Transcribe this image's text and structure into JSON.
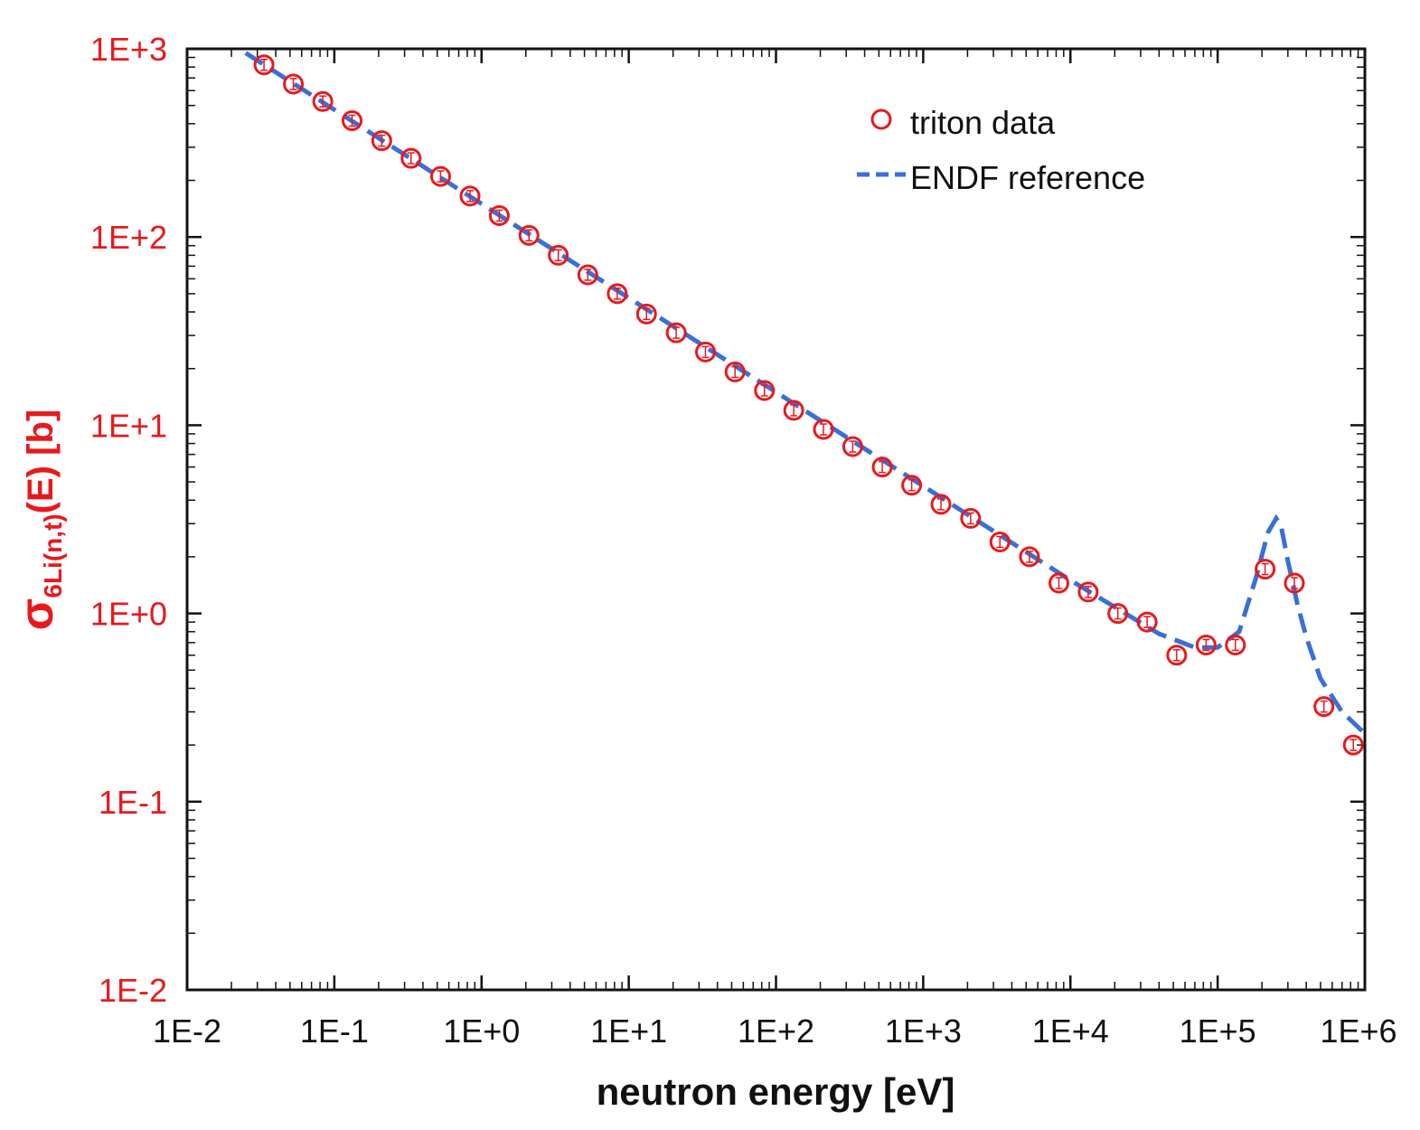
{
  "chart_data": {
    "type": "scatter",
    "x_scale": "log",
    "y_scale": "log",
    "xlim": [
      0.01,
      1000000
    ],
    "ylim": [
      0.01,
      1000
    ],
    "grid": false,
    "legend_position": "top-right",
    "xlabel": "neutron energy [eV]",
    "ylabel_main": "σ",
    "ylabel_sub": "6Li(n,t)",
    "ylabel_tail": "(E) [b]",
    "x_tick_labels": [
      "1E-2",
      "1E-1",
      "1E+0",
      "1E+1",
      "1E+2",
      "1E+3",
      "1E+4",
      "1E+5",
      "1E+6"
    ],
    "y_tick_labels": [
      "1E+3",
      "1E+2",
      "1E+1",
      "1E+0",
      "1E-1",
      "1E-2"
    ],
    "series": [
      {
        "name": "triton data",
        "kind": "markers",
        "marker": "open-circle",
        "color": "#e8191c",
        "x": [
          0.0333,
          0.0527,
          0.0835,
          0.132,
          0.21,
          0.332,
          0.527,
          0.835,
          1.32,
          2.1,
          3.32,
          5.27,
          8.35,
          13.2,
          21.0,
          33.2,
          52.7,
          83.5,
          132,
          210,
          332,
          527,
          835,
          1320,
          2100,
          3320,
          5270,
          8350,
          13200,
          21000,
          33200,
          52700,
          83500,
          132000,
          210000,
          332000,
          527000,
          835000
        ],
        "y": [
          822,
          650,
          525,
          415,
          325,
          262,
          210,
          165,
          130,
          102,
          80,
          63,
          50,
          39,
          31,
          24.5,
          19.2,
          15.3,
          12,
          9.5,
          7.7,
          6.0,
          4.8,
          3.8,
          3.2,
          2.4,
          2.0,
          1.45,
          1.3,
          1.0,
          0.9,
          0.6,
          0.68,
          0.68,
          1.72,
          1.45,
          0.32,
          0.2
        ]
      },
      {
        "name": "ENDF reference",
        "kind": "line",
        "dash": "dashed",
        "color": "#3a6fd8",
        "x": [
          0.025,
          0.1,
          1,
          10,
          100,
          1000,
          10000,
          40000,
          70000,
          100000,
          140000,
          180000,
          220000,
          250000,
          270000,
          300000,
          350000,
          400000,
          500000,
          700000,
          1000000
        ],
        "y": [
          950,
          475,
          150,
          47.5,
          15,
          4.75,
          1.5,
          0.78,
          0.66,
          0.66,
          0.8,
          1.5,
          2.7,
          3.2,
          2.9,
          1.9,
          1.1,
          0.75,
          0.45,
          0.3,
          0.23
        ]
      }
    ]
  }
}
